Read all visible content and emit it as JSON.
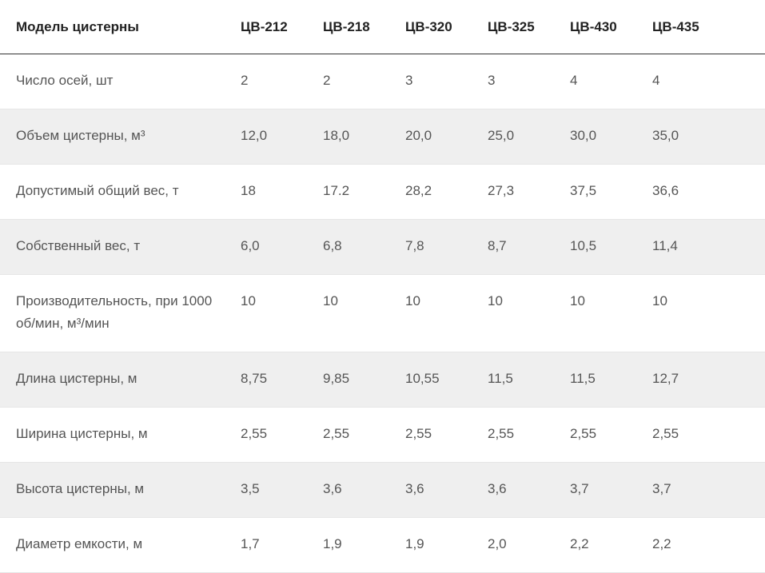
{
  "table": {
    "header": [
      "Модель цистерны",
      "ЦВ-212",
      "ЦВ-218",
      "ЦВ-320",
      "ЦВ-325",
      "ЦВ-430",
      "ЦВ-435"
    ],
    "rows": [
      [
        "Число осей, шт",
        "2",
        "2",
        "3",
        "3",
        "4",
        "4"
      ],
      [
        "Объем цистерны, м³",
        "12,0",
        "18,0",
        "20,0",
        "25,0",
        "30,0",
        "35,0"
      ],
      [
        "Допустимый общий вес, т",
        "18",
        "17.2",
        "28,2",
        "27,3",
        "37,5",
        "36,6"
      ],
      [
        "Собственный вес, т",
        "6,0",
        "6,8",
        "7,8",
        "8,7",
        "10,5",
        "11,4"
      ],
      [
        "Производительность, при 1000 об/мин, м³/мин",
        "10",
        "10",
        "10",
        "10",
        "10",
        "10"
      ],
      [
        "Длина цистерны, м",
        "8,75",
        "9,85",
        "10,55",
        "11,5",
        "11,5",
        "12,7"
      ],
      [
        "Ширина цистерны, м",
        "2,55",
        "2,55",
        "2,55",
        "2,55",
        "2,55",
        "2,55"
      ],
      [
        "Высота цистерны, м",
        "3,5",
        "3,6",
        "3,6",
        "3,6",
        "3,7",
        "3,7"
      ],
      [
        "Диаметр емкости, м",
        "1,7",
        "1,9",
        "1,9",
        "2,0",
        "2,2",
        "2,2"
      ]
    ]
  }
}
